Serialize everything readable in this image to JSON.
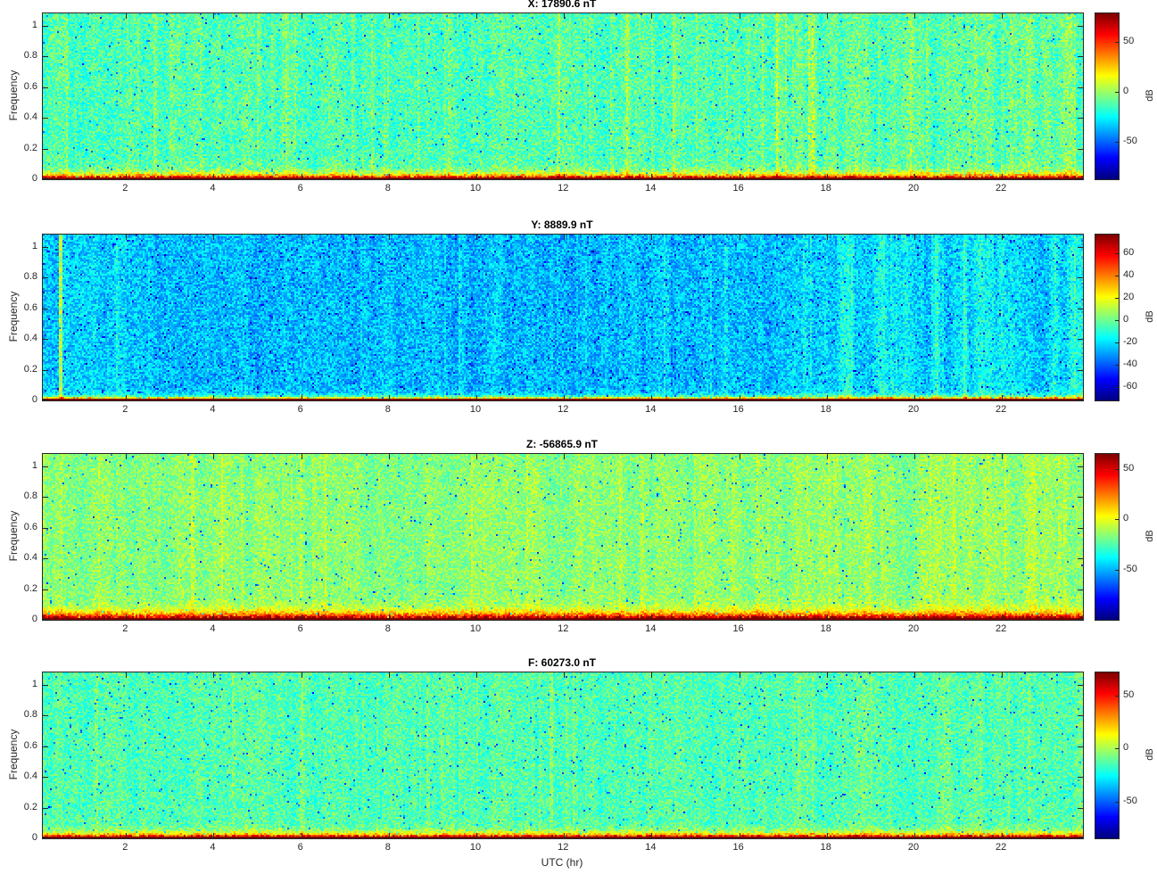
{
  "figure": {
    "background": "#ffffff",
    "kind": "MATLAB-style 4-panel spectrogram figure"
  },
  "chart_data": {
    "type": "heatmap",
    "subtype": "spectrogram-grid",
    "colormap": "jet",
    "xlabel": "UTC (hr)",
    "ylabel": "Frequency",
    "colorbar_label": "dB",
    "x_range_hr": [
      0.1,
      23.85
    ],
    "y_range": [
      0,
      1.08
    ],
    "xticks": [
      2,
      4,
      6,
      8,
      10,
      12,
      14,
      16,
      18,
      20,
      22
    ],
    "xtick_labels": [
      "2",
      "4",
      "6",
      "8",
      "10",
      "12",
      "14",
      "16",
      "18",
      "20",
      "22"
    ],
    "yticks": [
      0,
      0.2,
      0.4,
      0.6,
      0.8,
      1
    ],
    "ytick_labels": [
      "0",
      "0.2",
      "0.4",
      "0.6",
      "0.8",
      "1"
    ],
    "panels": [
      {
        "id": "X",
        "title": "X: 17890.6 nT",
        "colorbar": {
          "label": "dB",
          "vmin": -87,
          "vmax": 78,
          "ticks": [
            50,
            0,
            -50
          ],
          "tick_labels": [
            "50",
            "0",
            "-50"
          ]
        },
        "texture_model": {
          "base_db": -13,
          "noise_db": 13,
          "col_var_db": 4,
          "stripe_prob": 0.07,
          "stripe_amp_db": 7,
          "late_start": 0.7,
          "late_amp_db": 9,
          "speckle_prob": 0.018,
          "speckle_depth_db": 30,
          "band_peak_db": 95,
          "band_decay": 0.022
        }
      },
      {
        "id": "Y",
        "title": "Y: 8889.9 nT",
        "colorbar": {
          "label": "dB",
          "vmin": -72,
          "vmax": 77,
          "ticks": [
            60,
            40,
            20,
            0,
            -20,
            -40,
            -60
          ],
          "tick_labels": [
            "60",
            "40",
            "20",
            "0",
            "-20",
            "-40",
            "-60"
          ]
        },
        "texture_model": {
          "base_db": -23,
          "noise_db": 12,
          "col_var_db": 3.5,
          "stripe_prob": 0.05,
          "stripe_amp_db": 6,
          "late_start": 0.73,
          "late_amp_db": 10,
          "speckle_prob": 0.03,
          "speckle_depth_db": 26,
          "band_peak_db": 100,
          "band_decay": 0.013,
          "bright_col": {
            "t": 0.017,
            "amp_db": 34
          },
          "dip": {
            "start": 0.08,
            "end": 0.72,
            "amp_db": -4
          }
        }
      },
      {
        "id": "Z",
        "title": "Z: -56865.9 nT",
        "colorbar": {
          "label": "dB",
          "vmin": -100,
          "vmax": 65,
          "ticks": [
            50,
            0,
            -50
          ],
          "tick_labels": [
            "50",
            "0",
            "-50"
          ]
        },
        "texture_model": {
          "base_db": -16,
          "noise_db": 11,
          "col_var_db": 4,
          "stripe_prob": 0.06,
          "stripe_amp_db": 6,
          "late_start": 0.72,
          "late_amp_db": 5,
          "speckle_prob": 0.014,
          "speckle_depth_db": 38,
          "band_peak_db": 100,
          "band_decay": 0.03
        }
      },
      {
        "id": "F",
        "title": "F: 60273.0 nT",
        "colorbar": {
          "label": "dB",
          "vmin": -85,
          "vmax": 72,
          "ticks": [
            50,
            0,
            -50
          ],
          "tick_labels": [
            "50",
            "0",
            "-50"
          ]
        },
        "texture_model": {
          "base_db": -14,
          "noise_db": 11,
          "col_var_db": 3.5,
          "stripe_prob": 0.06,
          "stripe_amp_db": 5,
          "late_start": 0.78,
          "late_amp_db": 4,
          "speckle_prob": 0.02,
          "speckle_depth_db": 30,
          "band_peak_db": 95,
          "band_decay": 0.02
        }
      }
    ]
  }
}
